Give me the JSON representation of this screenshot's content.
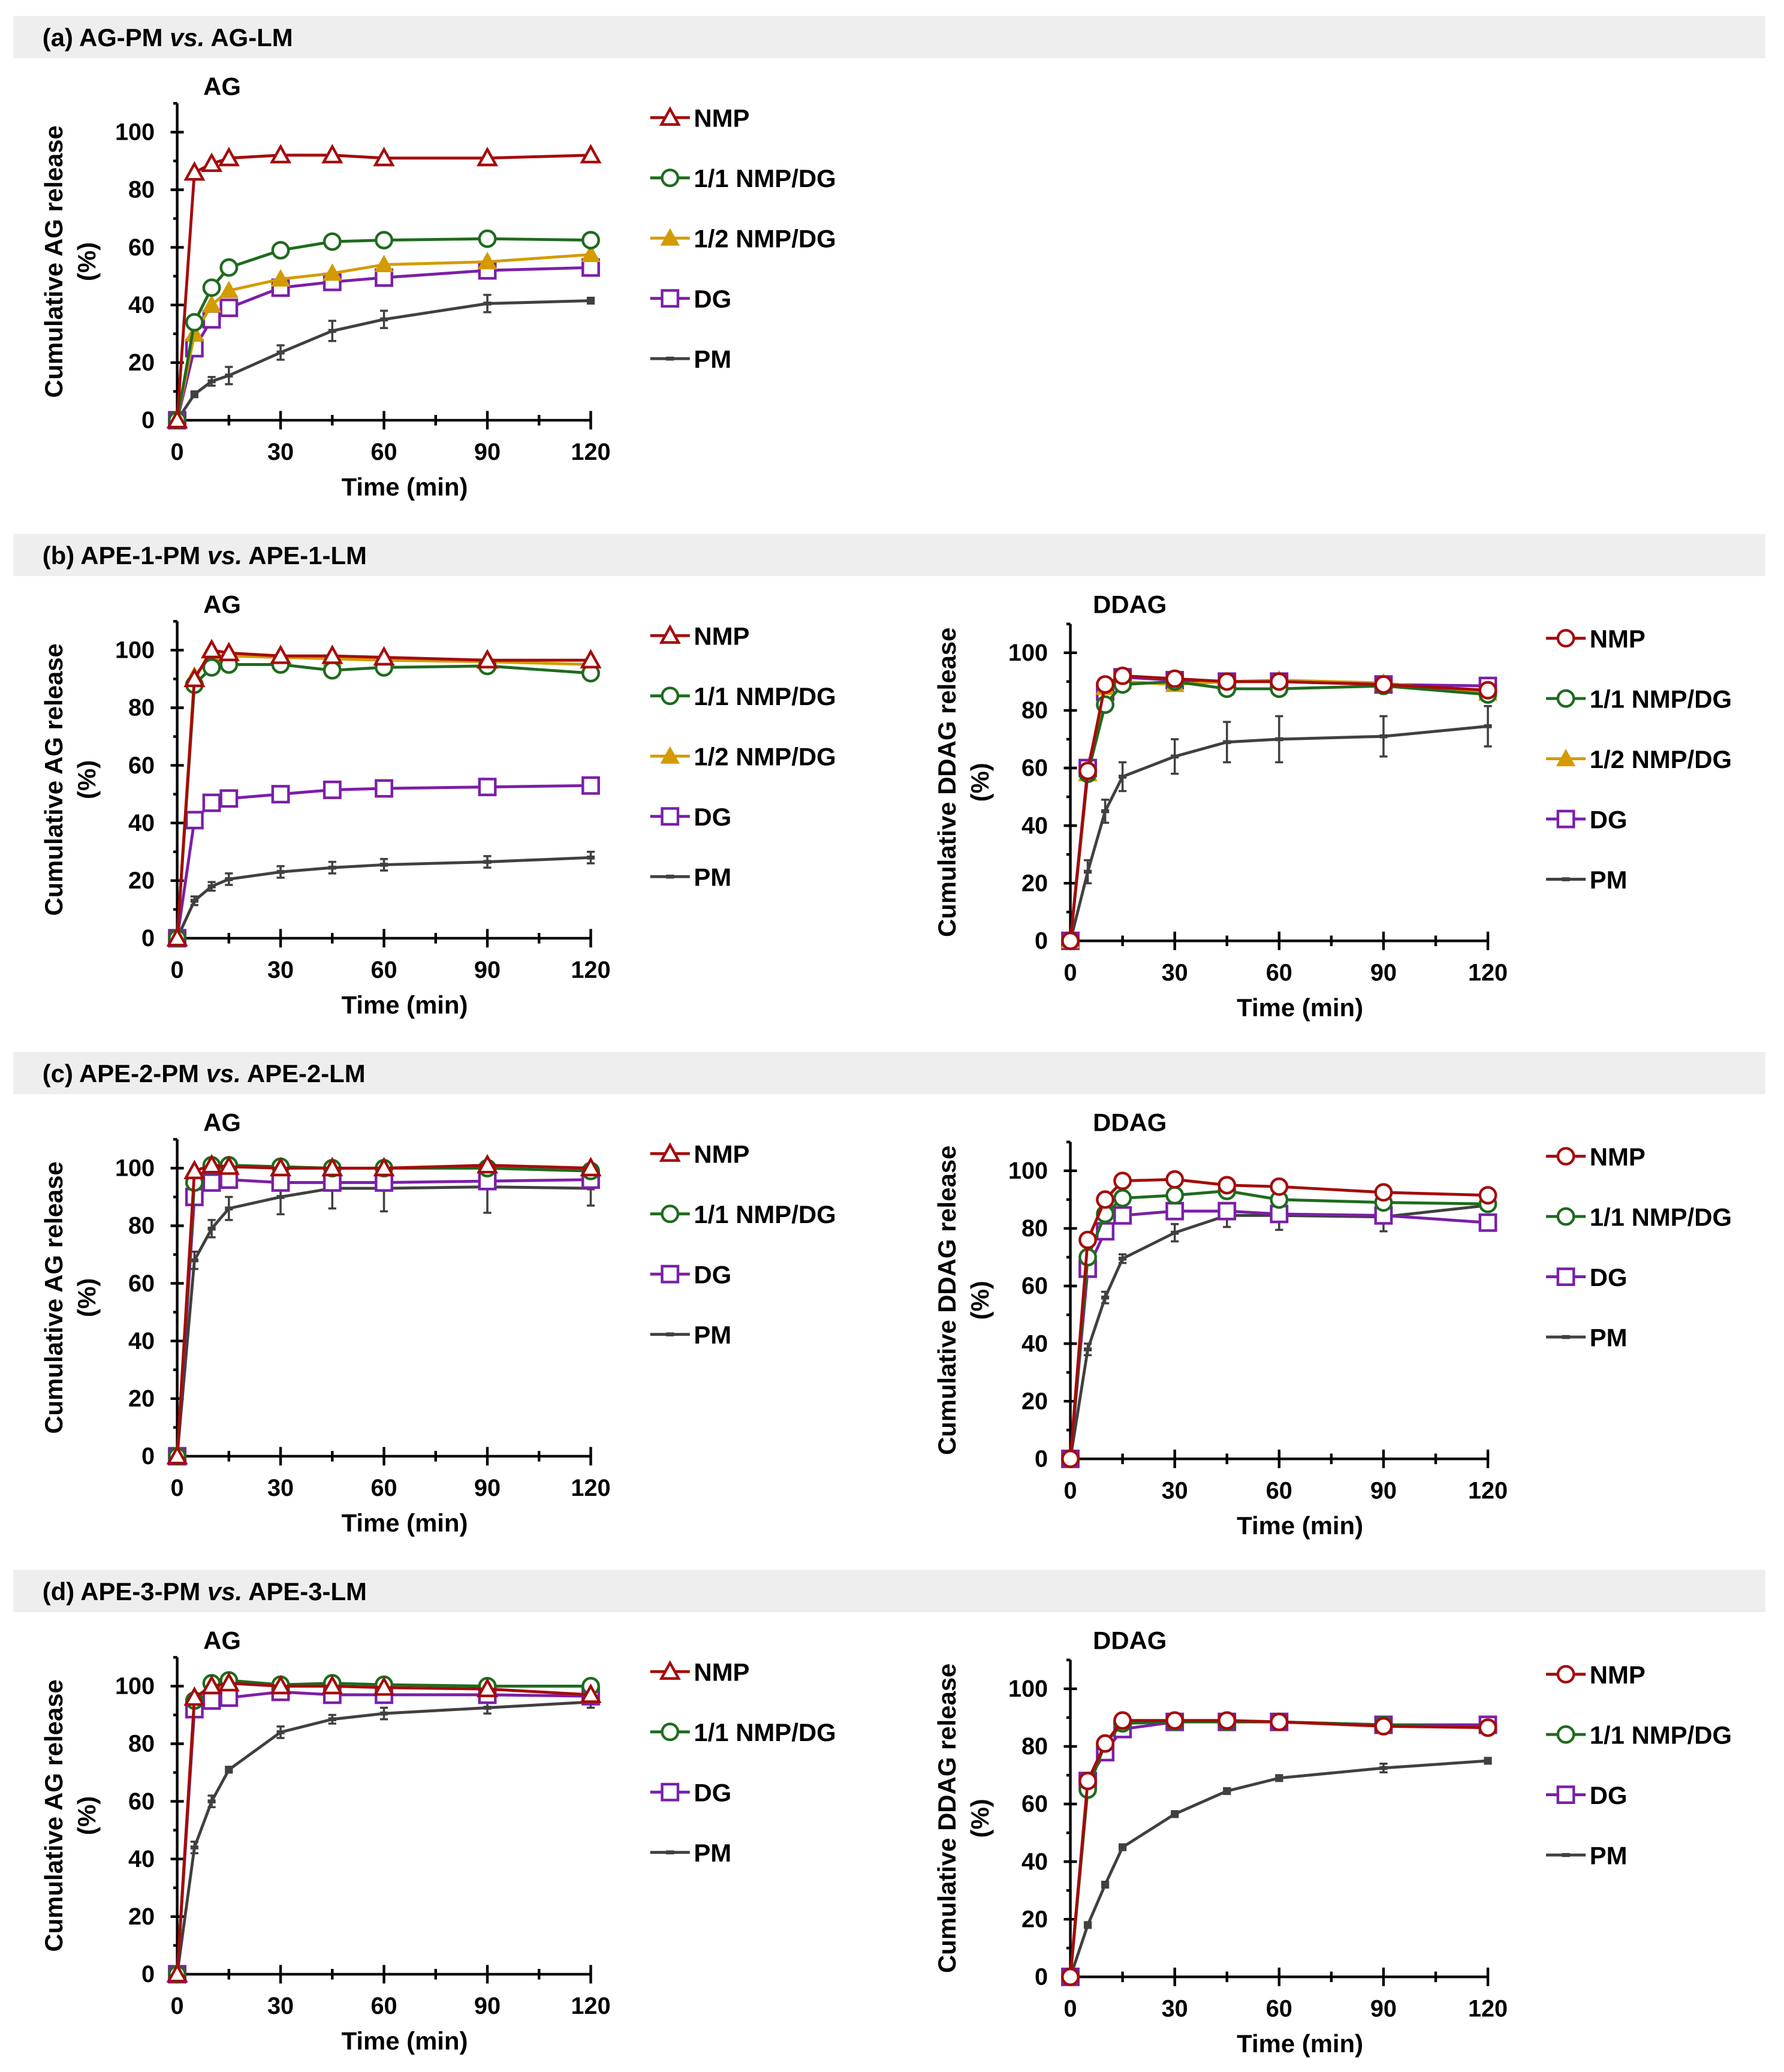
{
  "chart_data": {
    "type": "line",
    "x": [
      0,
      5,
      10,
      15,
      30,
      45,
      60,
      90,
      120
    ],
    "xlim": [
      0,
      120
    ],
    "ylim": [
      0,
      110
    ],
    "xticks": [
      0,
      30,
      60,
      90,
      120
    ],
    "yticks": [
      0,
      20,
      40,
      60,
      80,
      100
    ],
    "xlabel": "Time (min)",
    "colors": {
      "NMP": "#a50b0b",
      "1/1 NMP/DG": "#1e6b1e",
      "1/2 NMP/DG": "#d39b00",
      "DG": "#7b1fa8",
      "PM": "#404040"
    },
    "panels": [
      {
        "header": {
          "prefix": "(a) AG-PM ",
          "vs": "vs.",
          "suffix": " AG-LM"
        },
        "charts": [
          {
            "title": "AG",
            "ylabel": "Cumulative AG release",
            "yunit": "(%)",
            "nmp_marker": "triangle",
            "series": [
              {
                "name": "NMP",
                "values": [
                  0,
                  86,
                  89,
                  91,
                  92,
                  92,
                  91,
                  91,
                  92
                ]
              },
              {
                "name": "1/1 NMP/DG",
                "values": [
                  0,
                  34,
                  46,
                  53,
                  59,
                  62,
                  62.5,
                  63,
                  62.5
                ]
              },
              {
                "name": "1/2 NMP/DG",
                "values": [
                  0,
                  30,
                  40,
                  45,
                  49,
                  51,
                  54,
                  55,
                  57.5
                ]
              },
              {
                "name": "DG",
                "values": [
                  0,
                  25,
                  35,
                  39,
                  46,
                  48,
                  49.5,
                  52,
                  53
                ]
              },
              {
                "name": "PM",
                "values": [
                  0,
                  9,
                  13.5,
                  15.5,
                  23.5,
                  31,
                  35,
                  40.5,
                  41.5
                ],
                "errors": [
                  0,
                  1,
                  1.5,
                  3,
                  2.5,
                  3.5,
                  3,
                  3,
                  1
                ]
              }
            ]
          }
        ]
      },
      {
        "header": {
          "prefix": "(b) APE-1-PM ",
          "vs": "vs.",
          "suffix": " APE-1-LM"
        },
        "charts": [
          {
            "title": "AG",
            "ylabel": "Cumulative AG release",
            "yunit": "(%)",
            "nmp_marker": "triangle",
            "series": [
              {
                "name": "NMP",
                "values": [
                  0,
                  90,
                  100,
                  99,
                  98,
                  98,
                  97.5,
                  96.5,
                  96.5
                ]
              },
              {
                "name": "1/1 NMP/DG",
                "values": [
                  0,
                  88,
                  94,
                  95,
                  95,
                  93,
                  94,
                  94.5,
                  92
                ]
              },
              {
                "name": "1/2 NMP/DG",
                "values": [
                  0,
                  91,
                  98,
                  98,
                  97.5,
                  97,
                  96.5,
                  96,
                  95
                ]
              },
              {
                "name": "DG",
                "values": [
                  0,
                  41,
                  47,
                  48.5,
                  50,
                  51.5,
                  52,
                  52.5,
                  53
                ]
              },
              {
                "name": "PM",
                "values": [
                  0,
                  13,
                  18,
                  20.5,
                  23,
                  24.5,
                  25.5,
                  26.5,
                  28
                ],
                "errors": [
                  0,
                  1.5,
                  1.5,
                  2,
                  2,
                  2,
                  2,
                  2,
                  2
                ]
              }
            ]
          },
          {
            "title": "DDAG",
            "ylabel": "Cumulative DDAG release",
            "yunit": "(%)",
            "nmp_marker": "circle",
            "series": [
              {
                "name": "NMP",
                "values": [
                  0,
                  59,
                  89,
                  92,
                  91,
                  90,
                  90,
                  89,
                  87
                ]
              },
              {
                "name": "1/1 NMP/DG",
                "values": [
                  0,
                  58,
                  82,
                  89,
                  90,
                  87.5,
                  87.5,
                  88.5,
                  85.5
                ]
              },
              {
                "name": "1/2 NMP/DG",
                "values": [
                  0,
                  58,
                  88,
                  90,
                  89,
                  90,
                  90.5,
                  89.5,
                  86
                ]
              },
              {
                "name": "DG",
                "values": [
                  0,
                  60,
                  86.5,
                  91.5,
                  90.5,
                  90,
                  90,
                  89,
                  88.5
                ]
              },
              {
                "name": "PM",
                "values": [
                  0,
                  24,
                  45,
                  57,
                  64,
                  69,
                  70,
                  71,
                  74.5
                ],
                "errors": [
                  0,
                  4,
                  4,
                  5,
                  6,
                  7,
                  8,
                  7,
                  7
                ]
              }
            ]
          }
        ]
      },
      {
        "header": {
          "prefix": "(c) APE-2-PM ",
          "vs": "vs.",
          "suffix": " APE-2-LM"
        },
        "charts": [
          {
            "title": "AG",
            "ylabel": "Cumulative AG release",
            "yunit": "(%)",
            "nmp_marker": "triangle",
            "series": [
              {
                "name": "NMP",
                "values": [
                  0,
                  99,
                  101,
                  100.5,
                  100,
                  100,
                  100,
                  101,
                  100
                ]
              },
              {
                "name": "1/1 NMP/DG",
                "values": [
                  0,
                  95,
                  101,
                  101,
                  100.5,
                  100,
                  100,
                  100,
                  99
                ]
              },
              {
                "name": "DG",
                "values": [
                  0,
                  90,
                  95,
                  96,
                  95,
                  95,
                  95,
                  95.5,
                  96
                ]
              },
              {
                "name": "PM",
                "values": [
                  0,
                  68,
                  79,
                  86,
                  90,
                  93,
                  93,
                  93.5,
                  93
                ],
                "errors": [
                  0,
                  3,
                  3,
                  4,
                  6,
                  7,
                  8,
                  9,
                  6
                ]
              }
            ]
          },
          {
            "title": "DDAG",
            "ylabel": "Cumulative DDAG release",
            "yunit": "(%)",
            "nmp_marker": "circle",
            "series": [
              {
                "name": "NMP",
                "values": [
                  0,
                  76,
                  90,
                  96.5,
                  97,
                  95,
                  94.5,
                  92.5,
                  91.5
                ]
              },
              {
                "name": "1/1 NMP/DG",
                "values": [
                  0,
                  70,
                  85,
                  90.5,
                  91.5,
                  93,
                  90,
                  89,
                  88.5
                ]
              },
              {
                "name": "DG",
                "values": [
                  0,
                  66,
                  79,
                  84.5,
                  86,
                  86,
                  85,
                  84.5,
                  82
                ]
              },
              {
                "name": "PM",
                "values": [
                  0,
                  38,
                  56,
                  69.5,
                  78.5,
                  84.5,
                  84.5,
                  84,
                  88
                ],
                "errors": [
                  0,
                  2,
                  2,
                  1.5,
                  3,
                  4,
                  5,
                  5,
                  2
                ]
              }
            ]
          }
        ]
      },
      {
        "header": {
          "prefix": "(d) APE-3-PM ",
          "vs": "vs.",
          "suffix": " APE-3-LM"
        },
        "charts": [
          {
            "title": "AG",
            "ylabel": "Cumulative AG release",
            "yunit": "(%)",
            "nmp_marker": "triangle",
            "series": [
              {
                "name": "NMP",
                "values": [
                  0,
                  96,
                  100,
                  101,
                  100,
                  100,
                  99.5,
                  99,
                  97
                ]
              },
              {
                "name": "1/1 NMP/DG",
                "values": [
                  0,
                  95,
                  101,
                  102,
                  100.5,
                  101,
                  100.5,
                  100,
                  100
                ]
              },
              {
                "name": "DG",
                "values": [
                  0,
                  92,
                  95,
                  96,
                  98,
                  97,
                  97,
                  97,
                  96.5
                ]
              },
              {
                "name": "PM",
                "values": [
                  0,
                  44,
                  60,
                  71,
                  84,
                  88.5,
                  90.5,
                  92.5,
                  94.5
                ],
                "errors": [
                  0,
                  2,
                  2,
                  1,
                  2,
                  1.5,
                  2,
                  2,
                  2
                ]
              }
            ]
          },
          {
            "title": "DDAG",
            "ylabel": "Cumulative DDAG release",
            "yunit": "(%)",
            "nmp_marker": "circle",
            "series": [
              {
                "name": "NMP",
                "values": [
                  0,
                  68,
                  81,
                  89,
                  89,
                  89,
                  88.5,
                  87,
                  86.5
                ]
              },
              {
                "name": "1/1 NMP/DG",
                "values": [
                  0,
                  65,
                  81,
                  88,
                  88.5,
                  88.5,
                  88.5,
                  87.5,
                  86.5
                ]
              },
              {
                "name": "DG",
                "values": [
                  0,
                  68,
                  78,
                  86,
                  88.5,
                  88.5,
                  88.5,
                  87.5,
                  87.5
                ]
              },
              {
                "name": "PM",
                "values": [
                  0,
                  18,
                  32,
                  45,
                  56.5,
                  64.5,
                  69,
                  72.5,
                  75
                ],
                "errors": [
                  0,
                  1,
                  1,
                  1,
                  1,
                  1,
                  1,
                  1.5,
                  1
                ]
              }
            ]
          }
        ]
      }
    ]
  }
}
